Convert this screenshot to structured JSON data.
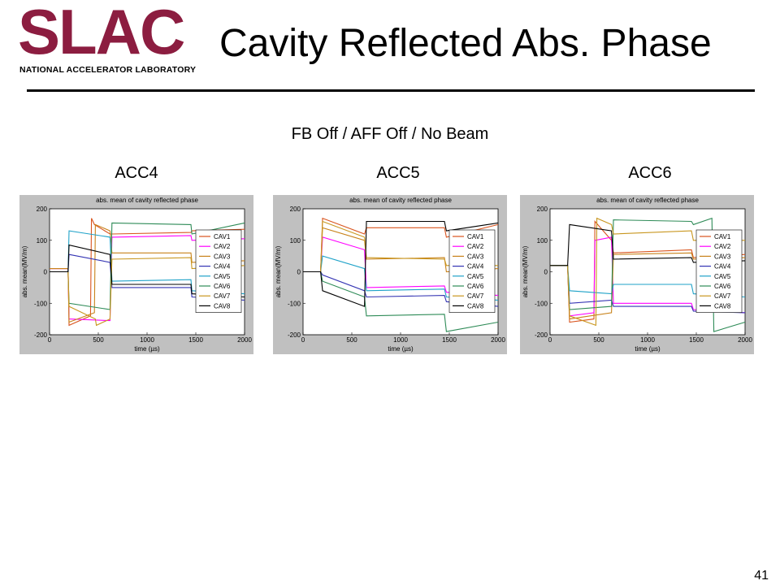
{
  "logo": {
    "word": "SLAC",
    "subtitle": "NATIONAL ACCELERATOR LABORATORY"
  },
  "slide": {
    "title": "Cavity Reflected Abs. Phase",
    "subtitle": "FB Off / AFF Off / No Beam",
    "page_number": "41"
  },
  "colors": {
    "CAV1": "#d9541e",
    "CAV2": "#ff00ff",
    "CAV3": "#c8821a",
    "CAV4": "#3333b3",
    "CAV5": "#1fa2c8",
    "CAV6": "#2e8b57",
    "CAV7": "#c8961e",
    "CAV8": "#000000"
  },
  "chart_data": [
    {
      "type": "line",
      "panel_label": "ACC4",
      "title": "abs. mean of cavity reflected phase",
      "xlabel": "time (µs)",
      "ylabel": "abs. mean(MV/m)",
      "xlim": [
        0,
        2000
      ],
      "ylim": [
        -200,
        200
      ],
      "xticks": [
        "0",
        "500",
        "1000",
        "1500",
        "2000"
      ],
      "yticks": [
        "200",
        "100",
        "0",
        "-100",
        "-200"
      ],
      "legend": "right",
      "series": [
        {
          "name": "CAV1",
          "x": [
            0,
            190,
            200,
            420,
            430,
            460,
            620,
            640,
            1450,
            1460,
            2000
          ],
          "y": [
            10,
            10,
            -170,
            -140,
            170,
            150,
            120,
            120,
            125,
            130,
            135
          ]
        },
        {
          "name": "CAV2",
          "x": [
            0,
            190,
            200,
            620,
            640,
            1450,
            1460,
            2000
          ],
          "y": [
            10,
            10,
            -150,
            -155,
            110,
            115,
            100,
            105
          ]
        },
        {
          "name": "CAV3",
          "x": [
            0,
            190,
            200,
            460,
            470,
            620,
            640,
            1450,
            1460,
            2000
          ],
          "y": [
            10,
            10,
            -160,
            -130,
            150,
            130,
            60,
            60,
            30,
            35
          ]
        },
        {
          "name": "CAV4",
          "x": [
            0,
            190,
            200,
            620,
            640,
            1450,
            1460,
            2000
          ],
          "y": [
            0,
            0,
            55,
            30,
            -50,
            -50,
            -80,
            -90
          ]
        },
        {
          "name": "CAV5",
          "x": [
            0,
            190,
            200,
            620,
            640,
            1450,
            1460,
            2000
          ],
          "y": [
            0,
            0,
            130,
            110,
            -30,
            -25,
            -60,
            -70
          ]
        },
        {
          "name": "CAV6",
          "x": [
            0,
            190,
            200,
            620,
            640,
            1450,
            1460,
            2000
          ],
          "y": [
            0,
            0,
            -100,
            -120,
            155,
            150,
            120,
            155
          ]
        },
        {
          "name": "CAV7",
          "x": [
            0,
            190,
            200,
            470,
            480,
            620,
            640,
            1450,
            1460,
            2000
          ],
          "y": [
            0,
            0,
            -110,
            -150,
            -170,
            -150,
            40,
            45,
            10,
            20
          ]
        },
        {
          "name": "CAV8",
          "x": [
            0,
            190,
            200,
            620,
            640,
            1450,
            1460,
            2000
          ],
          "y": [
            0,
            0,
            85,
            55,
            -40,
            -40,
            -70,
            -80
          ]
        }
      ]
    },
    {
      "type": "line",
      "panel_label": "ACC5",
      "title": "abs. mean of cavity reflected phase",
      "xlabel": "time (µs)",
      "ylabel": "abs. mean(MV/m)",
      "xlim": [
        0,
        2000
      ],
      "ylim": [
        -200,
        200
      ],
      "xticks": [
        "0",
        "500",
        "1000",
        "1500",
        "2000"
      ],
      "yticks": [
        "200",
        "100",
        "0",
        "-100",
        "-200"
      ],
      "legend": "right",
      "series": [
        {
          "name": "CAV1",
          "x": [
            0,
            180,
            200,
            630,
            650,
            1450,
            1470,
            2000
          ],
          "y": [
            0,
            0,
            170,
            120,
            140,
            140,
            110,
            150
          ]
        },
        {
          "name": "CAV2",
          "x": [
            0,
            180,
            200,
            630,
            650,
            1450,
            1470,
            2000
          ],
          "y": [
            0,
            0,
            110,
            70,
            -50,
            -45,
            -65,
            -75
          ]
        },
        {
          "name": "CAV3",
          "x": [
            0,
            180,
            200,
            630,
            650,
            1450,
            1470,
            2000
          ],
          "y": [
            0,
            0,
            140,
            100,
            40,
            45,
            0,
            10
          ]
        },
        {
          "name": "CAV4",
          "x": [
            0,
            180,
            200,
            630,
            650,
            1450,
            1470,
            2000
          ],
          "y": [
            0,
            0,
            -10,
            -60,
            -80,
            -75,
            -95,
            -110
          ]
        },
        {
          "name": "CAV5",
          "x": [
            0,
            180,
            200,
            630,
            650,
            1450,
            1470,
            2000
          ],
          "y": [
            0,
            0,
            50,
            10,
            -60,
            -55,
            -80,
            -90
          ]
        },
        {
          "name": "CAV6",
          "x": [
            0,
            180,
            200,
            630,
            650,
            1450,
            1470,
            2000
          ],
          "y": [
            0,
            0,
            -30,
            -80,
            -140,
            -135,
            -190,
            -160
          ]
        },
        {
          "name": "CAV7",
          "x": [
            0,
            180,
            200,
            630,
            650,
            1450,
            1470,
            2000
          ],
          "y": [
            0,
            0,
            160,
            110,
            45,
            40,
            20,
            20
          ]
        },
        {
          "name": "CAV8",
          "x": [
            0,
            180,
            200,
            630,
            650,
            1450,
            1470,
            2000
          ],
          "y": [
            0,
            0,
            -60,
            -110,
            160,
            160,
            130,
            155
          ]
        }
      ]
    },
    {
      "type": "line",
      "panel_label": "ACC6",
      "title": "abs. mean of cavity reflected phase",
      "xlabel": "time (µs)",
      "ylabel": "abs. mean(MV/m)",
      "xlim": [
        0,
        2000
      ],
      "ylim": [
        -200,
        200
      ],
      "xticks": [
        "0",
        "500",
        "1000",
        "1500",
        "2000"
      ],
      "yticks": [
        "200",
        "100",
        "0",
        "-100",
        "-200"
      ],
      "legend": "right",
      "series": [
        {
          "name": "CAV1",
          "x": [
            0,
            180,
            200,
            450,
            460,
            630,
            650,
            1450,
            1470,
            2000
          ],
          "y": [
            20,
            20,
            -160,
            -150,
            160,
            100,
            60,
            70,
            45,
            55
          ]
        },
        {
          "name": "CAV2",
          "x": [
            0,
            180,
            200,
            450,
            460,
            630,
            650,
            1450,
            1470,
            2000
          ],
          "y": [
            20,
            20,
            -140,
            -130,
            100,
            110,
            -100,
            -100,
            -120,
            -130
          ]
        },
        {
          "name": "CAV3",
          "x": [
            0,
            180,
            200,
            630,
            650,
            1450,
            1470,
            2000
          ],
          "y": [
            20,
            20,
            -150,
            -130,
            55,
            60,
            40,
            45
          ]
        },
        {
          "name": "CAV4",
          "x": [
            0,
            180,
            200,
            630,
            650,
            1450,
            1470,
            2000
          ],
          "y": [
            20,
            20,
            -100,
            -90,
            -110,
            -110,
            -125,
            -130
          ]
        },
        {
          "name": "CAV5",
          "x": [
            0,
            180,
            200,
            630,
            650,
            1450,
            1470,
            2000
          ],
          "y": [
            20,
            20,
            -60,
            -70,
            -40,
            -40,
            -70,
            -80
          ]
        },
        {
          "name": "CAV6",
          "x": [
            0,
            180,
            200,
            630,
            650,
            1450,
            1470,
            1660,
            1680,
            2000
          ],
          "y": [
            20,
            20,
            -120,
            -110,
            165,
            160,
            150,
            170,
            -190,
            -160
          ]
        },
        {
          "name": "CAV7",
          "x": [
            0,
            180,
            200,
            470,
            480,
            630,
            650,
            1450,
            1470,
            2000
          ],
          "y": [
            20,
            20,
            -140,
            -170,
            170,
            150,
            120,
            130,
            100,
            100
          ]
        },
        {
          "name": "CAV8",
          "x": [
            0,
            180,
            200,
            630,
            650,
            1450,
            1470,
            2000
          ],
          "y": [
            20,
            20,
            150,
            130,
            40,
            45,
            30,
            35
          ]
        }
      ]
    }
  ]
}
